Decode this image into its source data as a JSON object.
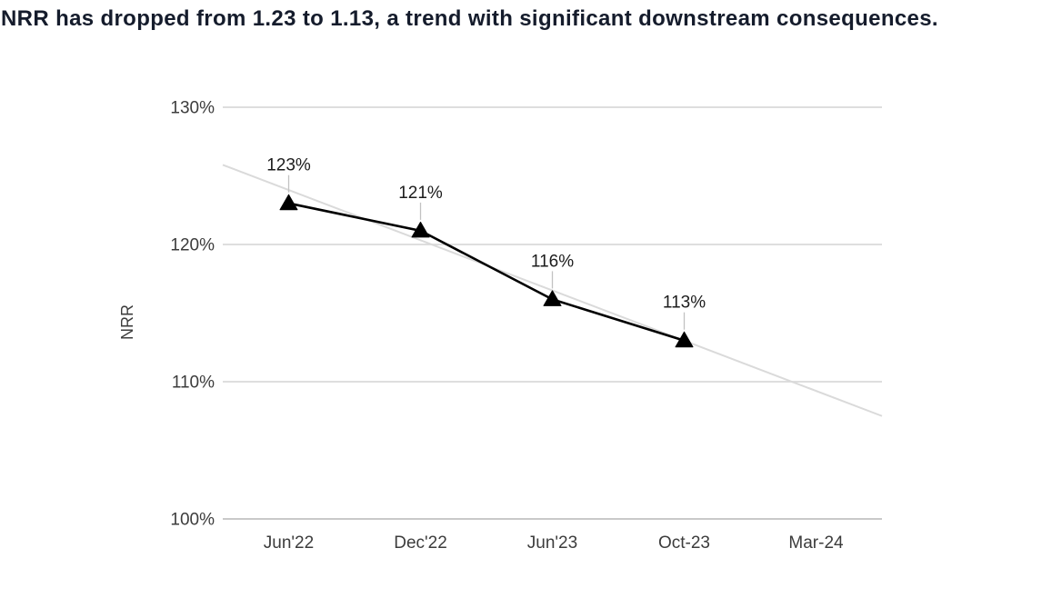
{
  "chart_data": {
    "type": "line",
    "title": "NRR has dropped from 1.23 to 1.13, a trend with significant downstream consequences.",
    "categories": [
      "Jun'22",
      "Dec'22",
      "Jun'23",
      "Oct-23",
      "Mar-24"
    ],
    "series": [
      {
        "name": "NRR",
        "values": [
          123,
          121,
          116,
          113,
          null
        ],
        "labels": [
          "123%",
          "121%",
          "116%",
          "113%",
          null
        ],
        "marker": "triangle",
        "color": "#000000"
      }
    ],
    "trendline": {
      "start_value": 125.8,
      "end_value": 107.5,
      "color": "#dadada"
    },
    "xlabel": "",
    "ylabel": "NRR",
    "ylim": [
      100,
      130
    ],
    "y_ticks": [
      {
        "value": 130,
        "label": "130%"
      },
      {
        "value": 120,
        "label": "120%"
      },
      {
        "value": 110,
        "label": "110%"
      },
      {
        "value": 100,
        "label": "100%"
      }
    ],
    "grid": true,
    "legend": false,
    "colors": {
      "title": "#151c2c",
      "series": "#000000",
      "trendline": "#dadada",
      "gridline": "#d9d9d9",
      "axis_line": "#c9c9c9",
      "callout": "#c2c2c2",
      "tick_text": "#3c3c3c",
      "data_label_text": "#1c1c1c"
    }
  }
}
